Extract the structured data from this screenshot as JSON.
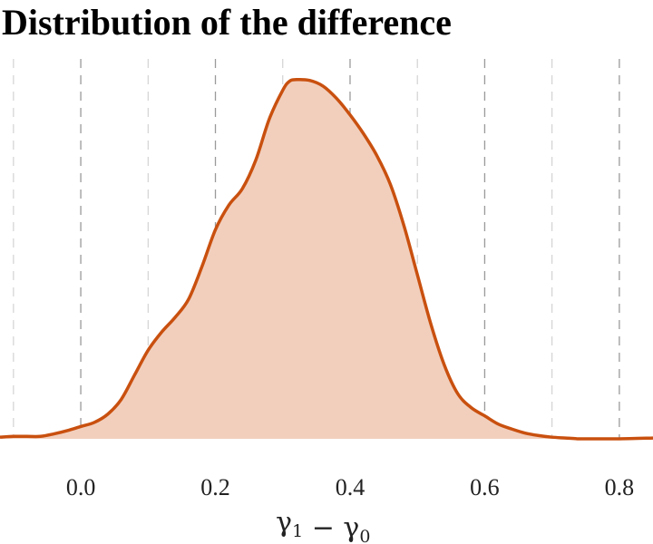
{
  "chart_data": {
    "type": "area",
    "title": "Distribution of the difference",
    "xlabel": "γ₁ − γ₀",
    "ylabel": "",
    "xlim": [
      -0.12,
      0.85
    ],
    "ylim": [
      0,
      4.4
    ],
    "grid": true,
    "legend": "none",
    "x_ticks": [
      0.0,
      0.2,
      0.4,
      0.6,
      0.8
    ],
    "x_tick_labels": [
      "0.0",
      "0.2",
      "0.4",
      "0.6",
      "0.8"
    ],
    "minor_gridlines": [
      -0.1,
      0.1,
      0.3,
      0.5,
      0.7
    ],
    "colors": {
      "line": "#c9500f",
      "fill": "#f2cfbd"
    },
    "series": [
      {
        "x": [
          -0.12,
          -0.1,
          -0.08,
          -0.06,
          -0.04,
          -0.02,
          0.0,
          0.02,
          0.04,
          0.06,
          0.08,
          0.1,
          0.12,
          0.14,
          0.16,
          0.18,
          0.2,
          0.22,
          0.24,
          0.26,
          0.28,
          0.3,
          0.31,
          0.32,
          0.34,
          0.36,
          0.38,
          0.4,
          0.42,
          0.44,
          0.46,
          0.48,
          0.5,
          0.52,
          0.54,
          0.56,
          0.58,
          0.6,
          0.62,
          0.64,
          0.66,
          0.68,
          0.7,
          0.72,
          0.74,
          0.76,
          0.8,
          0.85
        ],
        "y": [
          0.02,
          0.03,
          0.03,
          0.03,
          0.06,
          0.1,
          0.15,
          0.2,
          0.3,
          0.48,
          0.78,
          1.08,
          1.3,
          1.48,
          1.7,
          2.1,
          2.55,
          2.85,
          3.05,
          3.4,
          3.9,
          4.25,
          4.36,
          4.38,
          4.37,
          4.3,
          4.15,
          3.95,
          3.72,
          3.45,
          3.1,
          2.6,
          2.0,
          1.4,
          0.9,
          0.55,
          0.38,
          0.28,
          0.18,
          0.12,
          0.07,
          0.04,
          0.02,
          0.01,
          0.0,
          0.0,
          0.0,
          0.01
        ]
      }
    ]
  }
}
